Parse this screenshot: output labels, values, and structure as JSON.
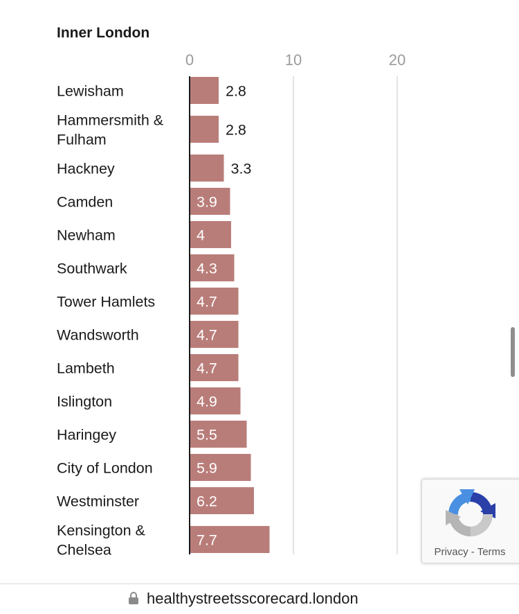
{
  "chart_data": {
    "type": "bar",
    "orientation": "horizontal",
    "title": "Inner London",
    "xticks": [
      "0",
      "10",
      "20"
    ],
    "xlim": [
      0,
      20
    ],
    "grid": true,
    "categories": [
      [
        "Lewisham"
      ],
      [
        "Hammersmith &",
        "Fulham"
      ],
      [
        "Hackney"
      ],
      [
        "Camden"
      ],
      [
        "Newham"
      ],
      [
        "Southwark"
      ],
      [
        "Tower Hamlets"
      ],
      [
        "Wandsworth"
      ],
      [
        "Lambeth"
      ],
      [
        "Islington"
      ],
      [
        "Haringey"
      ],
      [
        "City of London"
      ],
      [
        "Westminster"
      ],
      [
        "Kensington &",
        "Chelsea"
      ]
    ],
    "values": [
      2.8,
      2.8,
      3.3,
      3.9,
      4,
      4.3,
      4.7,
      4.7,
      4.7,
      4.9,
      5.5,
      5.9,
      6.2,
      7.7
    ],
    "value_labels": [
      "2.8",
      "2.8",
      "3.3",
      "3.9",
      "4",
      "4.3",
      "4.7",
      "4.7",
      "4.7",
      "4.9",
      "5.5",
      "5.9",
      "6.2",
      "7.7"
    ],
    "bar_color": "#b97d79"
  },
  "recaptcha": {
    "privacy_label": "Privacy",
    "separator": "-",
    "terms_label": "Terms"
  },
  "browser": {
    "url": "healthystreetsscorecard.london"
  }
}
